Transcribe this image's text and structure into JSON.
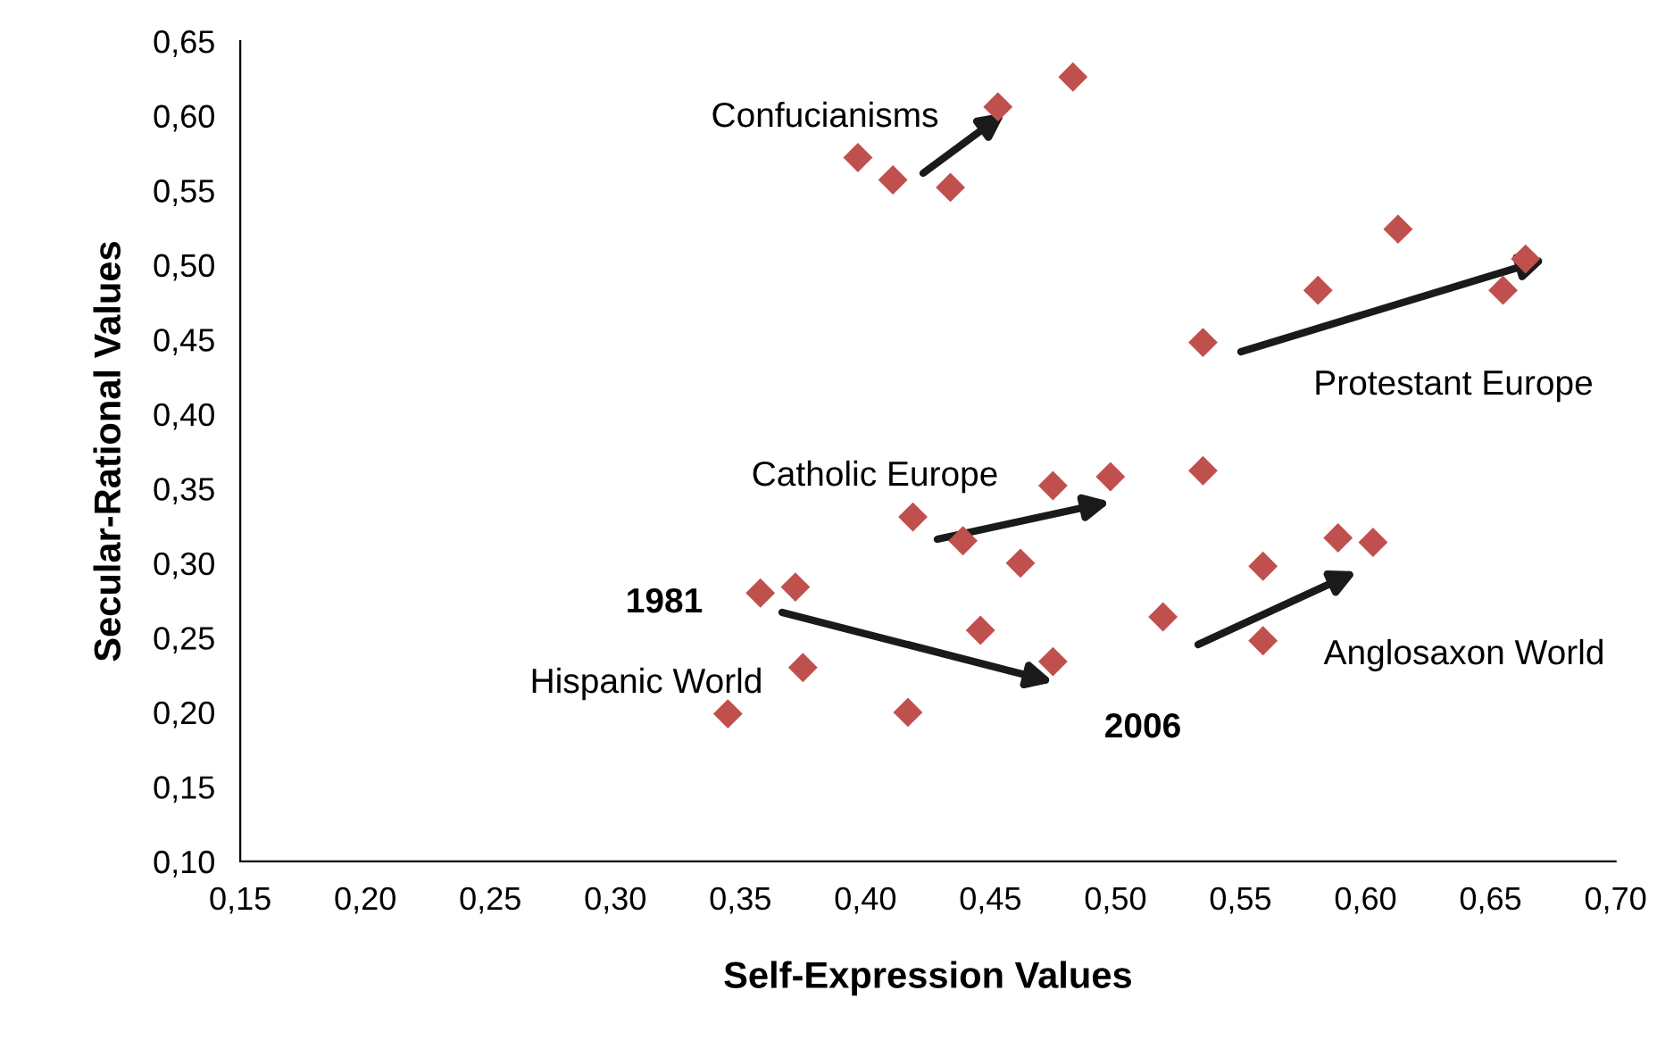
{
  "chart_data": {
    "type": "scatter",
    "xlabel": "Self-Expression Values",
    "ylabel": "Secular-Rational Values",
    "xlim": [
      0.15,
      0.7
    ],
    "ylim": [
      0.1,
      0.65
    ],
    "xticks": [
      {
        "value": 0.15,
        "label": "0,15"
      },
      {
        "value": 0.2,
        "label": "0,20"
      },
      {
        "value": 0.25,
        "label": "0,25"
      },
      {
        "value": 0.3,
        "label": "0,30"
      },
      {
        "value": 0.35,
        "label": "0,35"
      },
      {
        "value": 0.4,
        "label": "0,40"
      },
      {
        "value": 0.45,
        "label": "0,45"
      },
      {
        "value": 0.5,
        "label": "0,50"
      },
      {
        "value": 0.55,
        "label": "0,55"
      },
      {
        "value": 0.6,
        "label": "0,60"
      },
      {
        "value": 0.65,
        "label": "0,65"
      },
      {
        "value": 0.7,
        "label": "0,70"
      }
    ],
    "yticks": [
      {
        "value": 0.1,
        "label": "0,10"
      },
      {
        "value": 0.15,
        "label": "0,15"
      },
      {
        "value": 0.2,
        "label": "0,20"
      },
      {
        "value": 0.25,
        "label": "0,25"
      },
      {
        "value": 0.3,
        "label": "0,30"
      },
      {
        "value": 0.35,
        "label": "0,35"
      },
      {
        "value": 0.4,
        "label": "0,40"
      },
      {
        "value": 0.45,
        "label": "0,45"
      },
      {
        "value": 0.5,
        "label": "0,50"
      },
      {
        "value": 0.55,
        "label": "0,55"
      },
      {
        "value": 0.6,
        "label": "0,60"
      },
      {
        "value": 0.65,
        "label": "0,65"
      }
    ],
    "grid": false,
    "legend": false,
    "marker": "diamond",
    "series": [
      {
        "color": "#c0504d",
        "x": [
          0.453,
          0.483,
          0.397,
          0.411,
          0.434,
          0.613,
          0.581,
          0.664,
          0.655,
          0.535,
          0.535,
          0.498,
          0.475,
          0.419,
          0.439,
          0.462,
          0.358,
          0.372,
          0.375,
          0.345,
          0.417,
          0.446,
          0.475,
          0.519,
          0.559,
          0.559,
          0.589,
          0.603
        ],
        "values": [
          0.606,
          0.626,
          0.572,
          0.557,
          0.552,
          0.524,
          0.483,
          0.504,
          0.483,
          0.448,
          0.362,
          0.358,
          0.352,
          0.331,
          0.315,
          0.3,
          0.28,
          0.284,
          0.23,
          0.199,
          0.2,
          0.255,
          0.234,
          0.264,
          0.298,
          0.248,
          0.317,
          0.314
        ]
      }
    ],
    "annotations": [
      "Confucianisms",
      "Protestant Europe",
      "Catholic Europe",
      "1981",
      "Anglosaxon World",
      "2006",
      "Hispanic World"
    ]
  }
}
